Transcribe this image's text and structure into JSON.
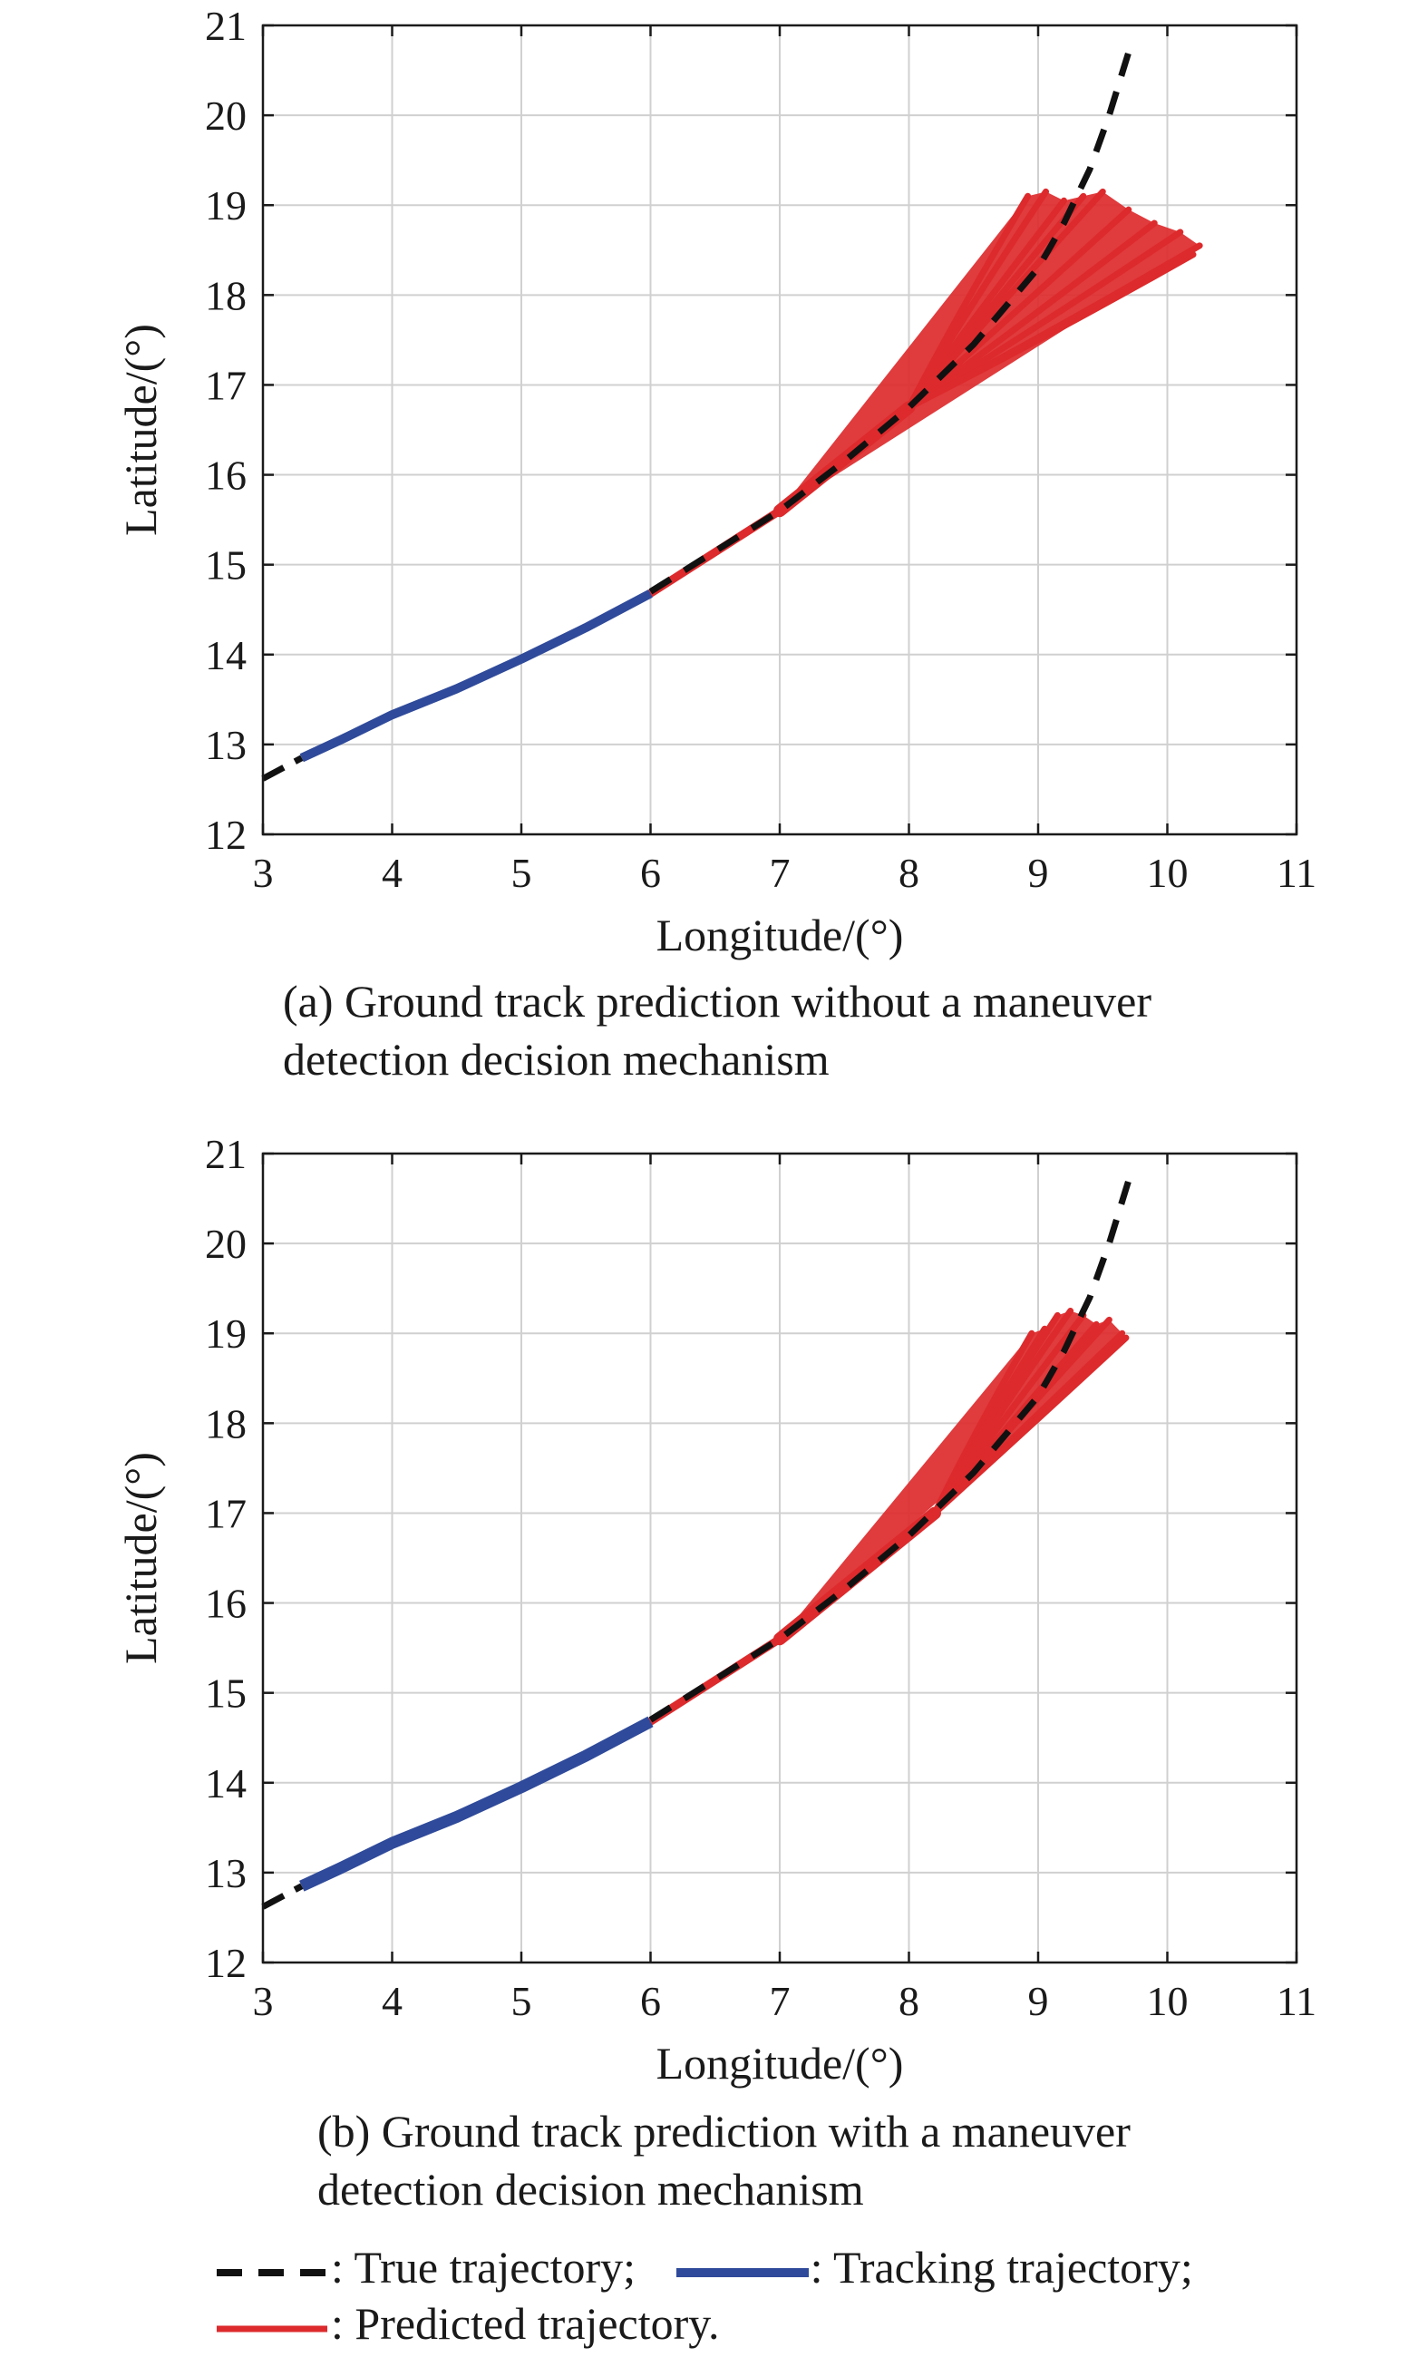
{
  "colors": {
    "true_trajectory": "#111111",
    "tracking_trajectory": "#2f4a9a",
    "predicted_trajectory": "#dd2a2c",
    "grid": "#d0d0d0",
    "axis": "#1a1a1a"
  },
  "chart_data": [
    {
      "type": "line",
      "xlabel": "Longitude/(°)",
      "ylabel": "Latitude/(°)",
      "xlim": [
        3,
        11
      ],
      "ylim": [
        12,
        21
      ],
      "xticks": [
        "3",
        "4",
        "5",
        "6",
        "7",
        "8",
        "9",
        "10",
        "11"
      ],
      "yticks": [
        "12",
        "13",
        "14",
        "15",
        "16",
        "17",
        "18",
        "19",
        "20",
        "21"
      ],
      "grid": true,
      "caption": "(a) Ground track prediction without a maneuver detection decision mechanism",
      "series": [
        {
          "name": "True trajectory",
          "x": [
            3.0,
            3.3,
            4.0,
            5.0,
            6.0,
            7.0,
            7.5,
            8.0,
            8.5,
            9.0,
            9.2,
            9.4,
            9.55,
            9.7
          ],
          "y": [
            12.62,
            12.85,
            13.35,
            13.95,
            14.7,
            15.6,
            16.15,
            16.75,
            17.45,
            18.3,
            18.8,
            19.4,
            20.0,
            20.7
          ]
        },
        {
          "name": "Tracking trajectory",
          "x": [
            3.3,
            3.6,
            4.0,
            4.5,
            5.0,
            5.5,
            6.0
          ],
          "y": [
            12.85,
            13.05,
            13.33,
            13.62,
            13.95,
            14.3,
            14.68
          ]
        },
        {
          "name": "Predicted trajectory",
          "x0": 6.0,
          "y0": 14.68,
          "x1": 7.0,
          "y1": 15.6,
          "fan_center_start": [
            8.0,
            16.75
          ],
          "fan_endpoints": [
            [
              8.92,
              19.1
            ],
            [
              9.06,
              19.15
            ],
            [
              9.2,
              19.05
            ],
            [
              9.35,
              19.1
            ],
            [
              9.5,
              19.15
            ],
            [
              9.7,
              18.95
            ],
            [
              9.9,
              18.8
            ],
            [
              10.1,
              18.7
            ],
            [
              10.25,
              18.55
            ],
            [
              10.2,
              18.45
            ],
            [
              9.95,
              18.3
            ]
          ]
        }
      ]
    },
    {
      "type": "line",
      "xlabel": "Longitude/(°)",
      "ylabel": "Latitude/(°)",
      "xlim": [
        3,
        11
      ],
      "ylim": [
        12,
        21
      ],
      "xticks": [
        "3",
        "4",
        "5",
        "6",
        "7",
        "8",
        "9",
        "10",
        "11"
      ],
      "yticks": [
        "12",
        "13",
        "14",
        "15",
        "16",
        "17",
        "18",
        "19",
        "20",
        "21"
      ],
      "grid": true,
      "caption": "(b) Ground track prediction with a maneuver detection decision mechanism",
      "series": [
        {
          "name": "True trajectory",
          "x": [
            3.0,
            3.3,
            4.0,
            5.0,
            6.0,
            7.0,
            7.5,
            8.0,
            8.5,
            9.0,
            9.2,
            9.4,
            9.55,
            9.7
          ],
          "y": [
            12.62,
            12.85,
            13.35,
            13.95,
            14.7,
            15.6,
            16.15,
            16.75,
            17.45,
            18.3,
            18.8,
            19.4,
            20.0,
            20.7
          ]
        },
        {
          "name": "Tracking trajectory",
          "x": [
            3.3,
            3.6,
            4.0,
            4.5,
            5.0,
            5.5,
            6.0
          ],
          "y": [
            12.85,
            13.05,
            13.33,
            13.62,
            13.95,
            14.3,
            14.68
          ]
        },
        {
          "name": "Predicted trajectory",
          "x0": 6.0,
          "y0": 14.68,
          "x1": 7.0,
          "y1": 15.6,
          "fan_center_start": [
            8.2,
            17.0
          ],
          "fan_endpoints": [
            [
              8.95,
              19.0
            ],
            [
              9.05,
              19.05
            ],
            [
              9.15,
              19.2
            ],
            [
              9.25,
              19.25
            ],
            [
              9.35,
              19.2
            ],
            [
              9.45,
              19.1
            ],
            [
              9.55,
              19.15
            ],
            [
              9.65,
              19.0
            ],
            [
              9.68,
              18.95
            ]
          ]
        }
      ]
    }
  ],
  "legend": {
    "true_label": ": True trajectory;",
    "tracking_label": ": Tracking trajectory;",
    "predicted_label": ": Predicted trajectory."
  }
}
